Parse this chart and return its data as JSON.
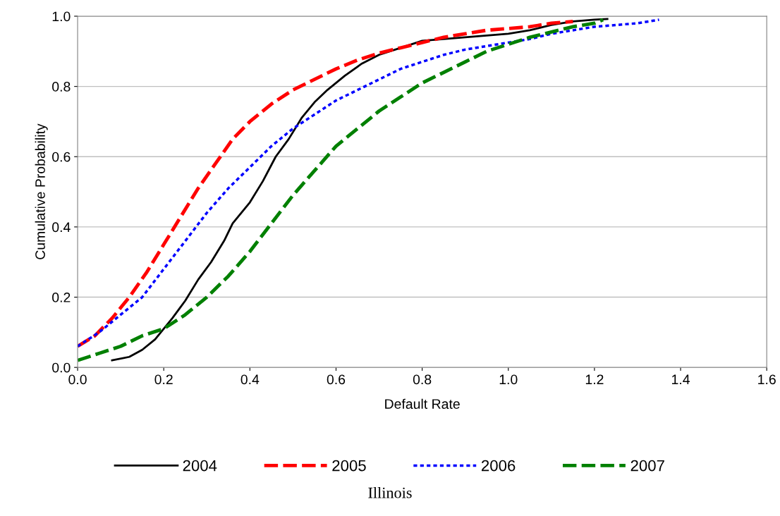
{
  "chart_data": {
    "type": "line",
    "title": "Illinois",
    "xlabel": "Default Rate",
    "ylabel": "Cumulative Probability",
    "xlim": [
      0,
      1.6
    ],
    "ylim": [
      0,
      1.0
    ],
    "xticks": [
      {
        "value": 0,
        "label": "0.0"
      },
      {
        "value": 0.2,
        "label": "0.2"
      },
      {
        "value": 0.4,
        "label": "0.4"
      },
      {
        "value": 0.6,
        "label": "0.6"
      },
      {
        "value": 0.8,
        "label": "0.8"
      },
      {
        "value": 1.0,
        "label": "1.0"
      },
      {
        "value": 1.2,
        "label": "1.2"
      },
      {
        "value": 1.4,
        "label": "1.4"
      },
      {
        "value": 1.6,
        "label": "1.6"
      }
    ],
    "yticks": [
      {
        "value": 0,
        "label": "0.0"
      },
      {
        "value": 0.2,
        "label": "0.2"
      },
      {
        "value": 0.4,
        "label": "0.4"
      },
      {
        "value": 0.6,
        "label": "0.6"
      },
      {
        "value": 0.8,
        "label": "0.8"
      },
      {
        "value": 1.0,
        "label": "1.0"
      }
    ],
    "grid": "y",
    "legend": "bottom",
    "marker": "none",
    "series": [
      {
        "name": "2004",
        "color": "#000000",
        "line_style": "solid",
        "x": [
          0.08,
          0.12,
          0.15,
          0.18,
          0.2,
          0.22,
          0.25,
          0.28,
          0.31,
          0.34,
          0.36,
          0.4,
          0.43,
          0.46,
          0.49,
          0.52,
          0.55,
          0.58,
          0.62,
          0.66,
          0.7,
          0.75,
          0.8,
          0.85,
          0.9,
          0.95,
          1.0,
          1.05,
          1.1,
          1.15,
          1.2,
          1.23
        ],
        "values": [
          0.02,
          0.03,
          0.05,
          0.08,
          0.11,
          0.14,
          0.19,
          0.25,
          0.3,
          0.36,
          0.41,
          0.47,
          0.53,
          0.6,
          0.65,
          0.71,
          0.755,
          0.79,
          0.83,
          0.865,
          0.89,
          0.91,
          0.93,
          0.935,
          0.94,
          0.945,
          0.95,
          0.96,
          0.975,
          0.985,
          0.99,
          0.992
        ]
      },
      {
        "name": "2005",
        "color": "#ff0000",
        "line_style": "dashed",
        "x": [
          0,
          0.04,
          0.08,
          0.12,
          0.16,
          0.2,
          0.24,
          0.28,
          0.32,
          0.36,
          0.4,
          0.45,
          0.5,
          0.55,
          0.6,
          0.65,
          0.7,
          0.75,
          0.8,
          0.85,
          0.9,
          0.95,
          1.0,
          1.05,
          1.1,
          1.15
        ],
        "values": [
          0.06,
          0.09,
          0.14,
          0.2,
          0.27,
          0.35,
          0.43,
          0.51,
          0.58,
          0.65,
          0.7,
          0.75,
          0.79,
          0.82,
          0.85,
          0.875,
          0.895,
          0.91,
          0.925,
          0.94,
          0.95,
          0.96,
          0.965,
          0.97,
          0.98,
          0.985
        ]
      },
      {
        "name": "2006",
        "color": "#0000ff",
        "line_style": "dotted",
        "x": [
          0,
          0.05,
          0.1,
          0.15,
          0.2,
          0.25,
          0.3,
          0.35,
          0.4,
          0.45,
          0.5,
          0.55,
          0.6,
          0.65,
          0.7,
          0.75,
          0.8,
          0.85,
          0.9,
          0.95,
          1.0,
          1.05,
          1.1,
          1.15,
          1.2,
          1.25,
          1.3,
          1.35
        ],
        "values": [
          0.06,
          0.1,
          0.15,
          0.2,
          0.28,
          0.36,
          0.44,
          0.51,
          0.57,
          0.63,
          0.68,
          0.72,
          0.76,
          0.79,
          0.82,
          0.85,
          0.87,
          0.89,
          0.905,
          0.915,
          0.925,
          0.935,
          0.95,
          0.96,
          0.97,
          0.975,
          0.98,
          0.99
        ]
      },
      {
        "name": "2007",
        "color": "#008000",
        "line_style": "dashed",
        "x": [
          0,
          0.05,
          0.1,
          0.15,
          0.2,
          0.25,
          0.3,
          0.35,
          0.4,
          0.45,
          0.5,
          0.55,
          0.6,
          0.65,
          0.7,
          0.75,
          0.8,
          0.85,
          0.9,
          0.95,
          1.0,
          1.05,
          1.1,
          1.15,
          1.2,
          1.22
        ],
        "values": [
          0.02,
          0.04,
          0.06,
          0.09,
          0.11,
          0.15,
          0.2,
          0.26,
          0.33,
          0.41,
          0.49,
          0.56,
          0.63,
          0.68,
          0.73,
          0.77,
          0.81,
          0.84,
          0.87,
          0.9,
          0.92,
          0.94,
          0.955,
          0.97,
          0.98,
          0.99
        ]
      }
    ]
  }
}
